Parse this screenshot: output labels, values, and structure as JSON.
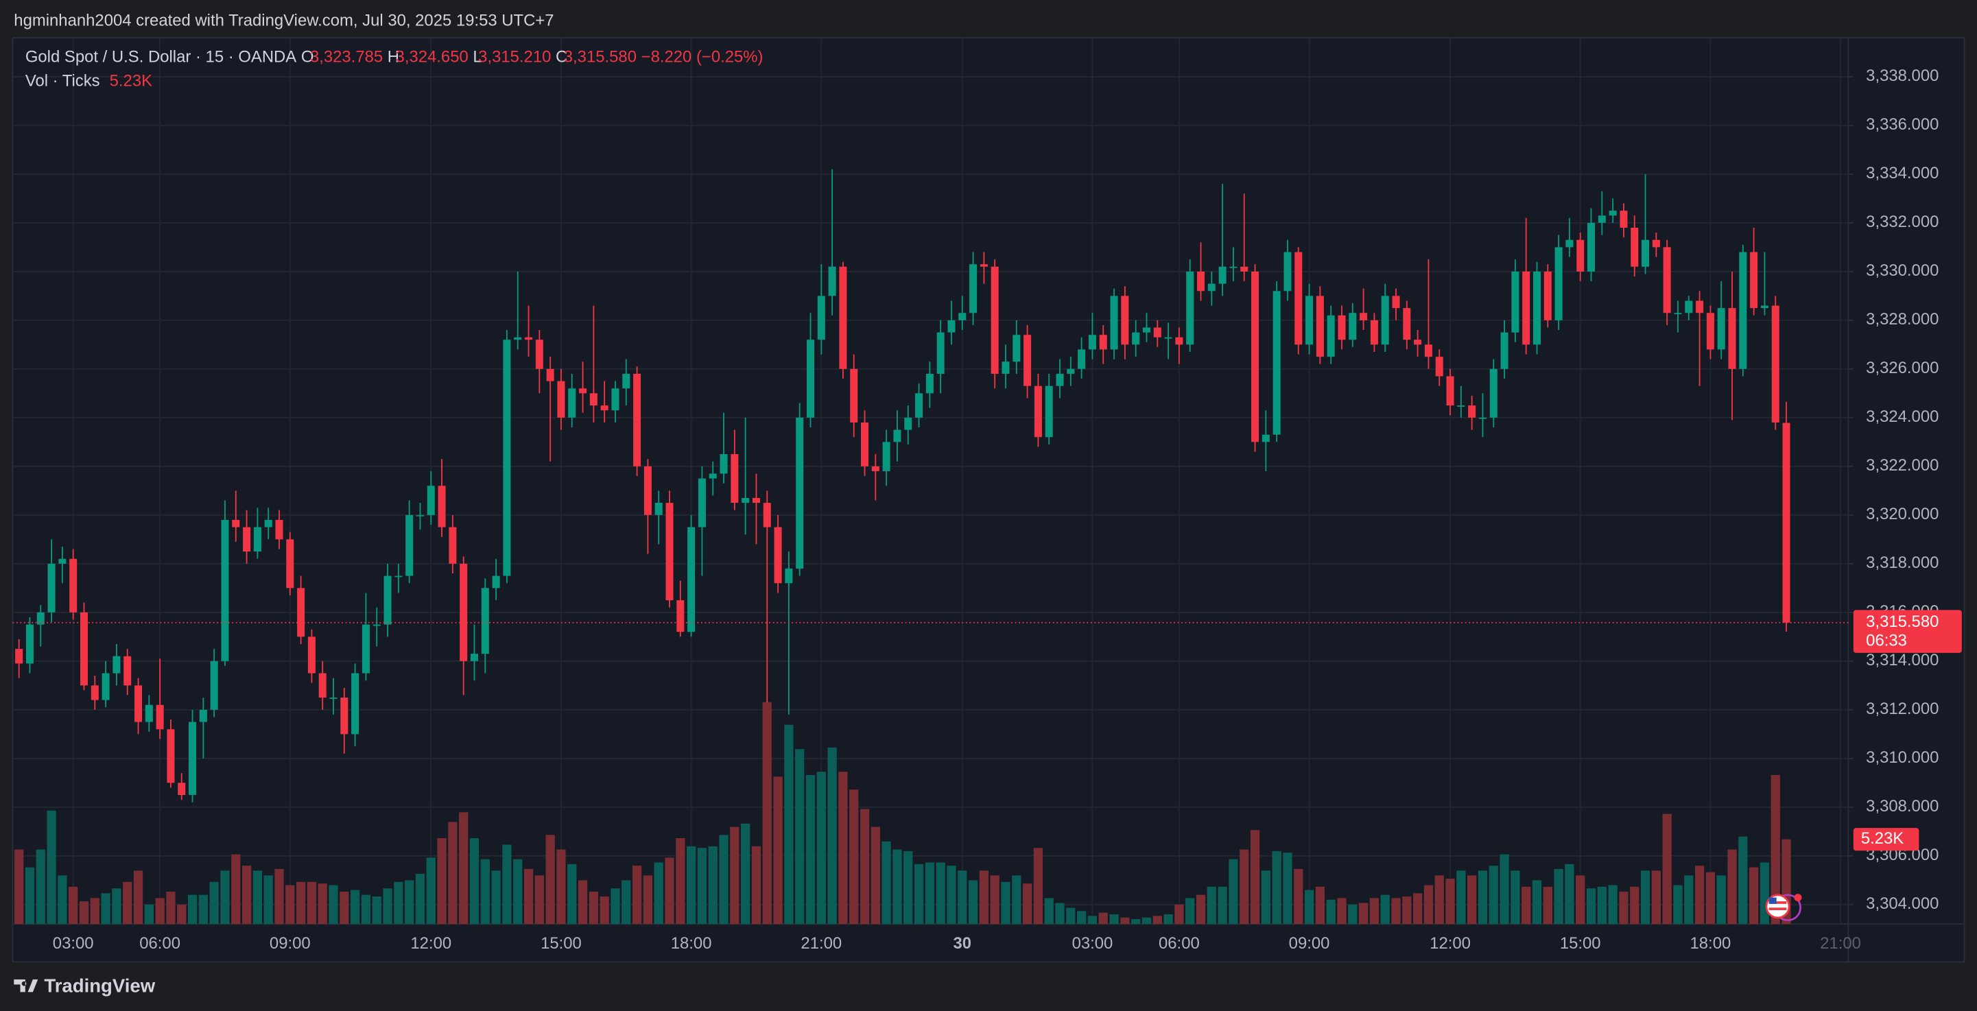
{
  "header": {
    "text": "hgminhanh2004 created with TradingView.com, Jul 30, 2025 19:53 UTC+7"
  },
  "footer": {
    "brand": "TradingView"
  },
  "chart_data": {
    "type": "candlestick",
    "title": "Gold Spot / U.S. Dollar · 15 · OANDA",
    "ohlc_keys": [
      "O",
      "H",
      "L",
      "C"
    ],
    "ohlc_labels": [
      "3,323.785",
      "3,324.650",
      "3,315.210",
      "3,315.580"
    ],
    "change_label": "−8.220 (−0.25%)",
    "countdown": "06:33",
    "up_color": "#089981",
    "down_color": "#f23645",
    "volume_up_color": "#0b5e57",
    "volume_down_color": "#7a2d33",
    "grid": true,
    "ylim": [
      3303.2,
      3339.6
    ],
    "yticks": [
      {
        "value": 3304,
        "label": "3,304.000"
      },
      {
        "value": 3306,
        "label": "3,306.000"
      },
      {
        "value": 3308,
        "label": "3,308.000"
      },
      {
        "value": 3310,
        "label": "3,310.000"
      },
      {
        "value": 3312,
        "label": "3,312.000"
      },
      {
        "value": 3314,
        "label": "3,314.000"
      },
      {
        "value": 3316,
        "label": "3,316.000"
      },
      {
        "value": 3318,
        "label": "3,318.000"
      },
      {
        "value": 3320,
        "label": "3,320.000"
      },
      {
        "value": 3322,
        "label": "3,322.000"
      },
      {
        "value": 3324,
        "label": "3,324.000"
      },
      {
        "value": 3326,
        "label": "3,326.000"
      },
      {
        "value": 3328,
        "label": "3,328.000"
      },
      {
        "value": 3330,
        "label": "3,330.000"
      },
      {
        "value": 3332,
        "label": "3,332.000"
      },
      {
        "value": 3334,
        "label": "3,334.000"
      },
      {
        "value": 3336,
        "label": "3,336.000"
      },
      {
        "value": 3338,
        "label": "3,338.000"
      }
    ],
    "xticks": [
      {
        "value": 5,
        "label": "03:00"
      },
      {
        "value": 13,
        "label": "06:00"
      },
      {
        "value": 25,
        "label": "09:00"
      },
      {
        "value": 38,
        "label": "12:00"
      },
      {
        "value": 50,
        "label": "15:00"
      },
      {
        "value": 62,
        "label": "18:00"
      },
      {
        "value": 74,
        "label": "21:00"
      },
      {
        "value": 87,
        "label": "30"
      },
      {
        "value": 99,
        "label": "03:00"
      },
      {
        "value": 107,
        "label": "06:00"
      },
      {
        "value": 119,
        "label": "09:00"
      },
      {
        "value": 132,
        "label": "12:00"
      },
      {
        "value": 144,
        "label": "15:00"
      },
      {
        "value": 156,
        "label": "18:00"
      },
      {
        "value": 168,
        "label": "21:00"
      }
    ],
    "candles": [
      [
        3314.5,
        3314.9,
        3313.3,
        3313.9
      ],
      [
        3313.9,
        3315.8,
        3313.5,
        3315.5
      ],
      [
        3315.5,
        3316.3,
        3314.6,
        3316.0
      ],
      [
        3316.0,
        3319.0,
        3315.6,
        3318.0
      ],
      [
        3318.0,
        3318.7,
        3317.2,
        3318.2
      ],
      [
        3318.2,
        3318.6,
        3315.7,
        3316.0
      ],
      [
        3316.0,
        3316.4,
        3312.8,
        3313.0
      ],
      [
        3313.0,
        3313.4,
        3312.0,
        3312.4
      ],
      [
        3312.4,
        3314.0,
        3312.1,
        3313.5
      ],
      [
        3313.5,
        3314.7,
        3313.0,
        3314.2
      ],
      [
        3314.2,
        3314.5,
        3312.6,
        3313.0
      ],
      [
        3313.0,
        3313.3,
        3311.0,
        3311.5
      ],
      [
        3311.5,
        3312.6,
        3311.1,
        3312.2
      ],
      [
        3312.2,
        3314.1,
        3310.8,
        3311.2
      ],
      [
        3311.2,
        3311.6,
        3308.8,
        3309.0
      ],
      [
        3309.0,
        3309.4,
        3308.3,
        3308.5
      ],
      [
        3308.5,
        3312.0,
        3308.2,
        3311.5
      ],
      [
        3311.5,
        3312.5,
        3310.0,
        3312.0
      ],
      [
        3312.0,
        3314.5,
        3311.7,
        3314.0
      ],
      [
        3314.0,
        3320.6,
        3313.8,
        3319.8
      ],
      [
        3319.8,
        3321.0,
        3318.9,
        3319.5
      ],
      [
        3319.5,
        3320.2,
        3318.0,
        3318.5
      ],
      [
        3318.5,
        3320.3,
        3318.2,
        3319.5
      ],
      [
        3319.5,
        3320.3,
        3319.0,
        3319.8
      ],
      [
        3319.8,
        3320.2,
        3318.6,
        3319.0
      ],
      [
        3319.0,
        3319.3,
        3316.7,
        3317.0
      ],
      [
        3317.0,
        3317.5,
        3314.7,
        3315.0
      ],
      [
        3315.0,
        3315.3,
        3313.1,
        3313.5
      ],
      [
        3313.5,
        3314.0,
        3312.0,
        3312.5
      ],
      [
        3312.5,
        3313.3,
        3311.8,
        3312.5
      ],
      [
        3312.5,
        3312.9,
        3310.2,
        3311.0
      ],
      [
        3311.0,
        3313.9,
        3310.5,
        3313.5
      ],
      [
        3313.5,
        3316.8,
        3313.2,
        3315.5
      ],
      [
        3315.5,
        3316.2,
        3314.6,
        3315.5
      ],
      [
        3315.5,
        3318.0,
        3315.0,
        3317.5
      ],
      [
        3317.5,
        3318.0,
        3316.8,
        3317.5
      ],
      [
        3317.5,
        3320.6,
        3317.2,
        3320.0
      ],
      [
        3320.0,
        3320.5,
        3319.4,
        3320.0
      ],
      [
        3320.0,
        3321.8,
        3319.6,
        3321.2
      ],
      [
        3321.2,
        3322.3,
        3319.1,
        3319.5
      ],
      [
        3319.5,
        3320.0,
        3317.6,
        3318.0
      ],
      [
        3318.0,
        3318.3,
        3312.6,
        3314.0
      ],
      [
        3314.0,
        3315.5,
        3313.2,
        3314.3
      ],
      [
        3314.3,
        3317.4,
        3313.5,
        3317.0
      ],
      [
        3317.0,
        3318.2,
        3316.5,
        3317.5
      ],
      [
        3317.5,
        3327.6,
        3317.2,
        3327.2
      ],
      [
        3327.2,
        3330.0,
        3326.8,
        3327.3
      ],
      [
        3327.3,
        3328.6,
        3326.5,
        3327.2
      ],
      [
        3327.2,
        3327.6,
        3325.0,
        3326.0
      ],
      [
        3326.0,
        3326.5,
        3322.2,
        3325.5
      ],
      [
        3325.5,
        3326.0,
        3323.5,
        3324.0
      ],
      [
        3324.0,
        3325.8,
        3323.6,
        3325.2
      ],
      [
        3325.2,
        3326.3,
        3324.2,
        3325.0
      ],
      [
        3325.0,
        3328.6,
        3323.8,
        3324.5
      ],
      [
        3324.5,
        3325.5,
        3323.8,
        3324.3
      ],
      [
        3324.3,
        3325.5,
        3323.8,
        3325.2
      ],
      [
        3325.2,
        3326.4,
        3324.5,
        3325.8
      ],
      [
        3325.8,
        3326.1,
        3321.6,
        3322.0
      ],
      [
        3322.0,
        3322.3,
        3318.4,
        3320.0
      ],
      [
        3320.0,
        3321.0,
        3318.8,
        3320.5
      ],
      [
        3320.5,
        3321.0,
        3316.2,
        3316.5
      ],
      [
        3316.5,
        3317.3,
        3315.0,
        3315.2
      ],
      [
        3315.2,
        3320.0,
        3315.0,
        3319.5
      ],
      [
        3319.5,
        3322.0,
        3317.5,
        3321.5
      ],
      [
        3321.5,
        3322.2,
        3320.8,
        3321.7
      ],
      [
        3321.7,
        3324.2,
        3321.3,
        3322.5
      ],
      [
        3322.5,
        3323.5,
        3320.2,
        3320.5
      ],
      [
        3320.5,
        3324.0,
        3319.2,
        3320.7
      ],
      [
        3320.7,
        3321.7,
        3318.8,
        3320.5
      ],
      [
        3320.5,
        3321.0,
        3312.3,
        3319.5
      ],
      [
        3319.5,
        3320.0,
        3316.8,
        3317.2
      ],
      [
        3317.2,
        3318.5,
        3311.8,
        3317.8
      ],
      [
        3317.8,
        3324.6,
        3317.5,
        3324.0
      ],
      [
        3324.0,
        3328.3,
        3323.6,
        3327.2
      ],
      [
        3327.2,
        3330.3,
        3326.6,
        3329.0
      ],
      [
        3329.0,
        3334.2,
        3328.2,
        3330.2
      ],
      [
        3330.2,
        3330.4,
        3325.6,
        3326.0
      ],
      [
        3326.0,
        3326.6,
        3323.2,
        3323.8
      ],
      [
        3323.8,
        3324.3,
        3321.6,
        3322.0
      ],
      [
        3322.0,
        3322.5,
        3320.6,
        3321.8
      ],
      [
        3321.8,
        3323.5,
        3321.2,
        3323.0
      ],
      [
        3323.0,
        3324.3,
        3322.2,
        3323.5
      ],
      [
        3323.5,
        3324.5,
        3322.9,
        3324.0
      ],
      [
        3324.0,
        3325.4,
        3323.6,
        3325.0
      ],
      [
        3325.0,
        3326.3,
        3324.4,
        3325.8
      ],
      [
        3325.8,
        3328.0,
        3325.0,
        3327.5
      ],
      [
        3327.5,
        3328.8,
        3327.0,
        3328.0
      ],
      [
        3328.0,
        3329.0,
        3327.6,
        3328.3
      ],
      [
        3328.3,
        3330.8,
        3327.8,
        3330.3
      ],
      [
        3330.3,
        3330.8,
        3329.5,
        3330.2
      ],
      [
        3330.2,
        3330.5,
        3325.2,
        3325.8
      ],
      [
        3325.8,
        3327.0,
        3325.2,
        3326.3
      ],
      [
        3326.3,
        3328.0,
        3325.8,
        3327.4
      ],
      [
        3327.4,
        3327.8,
        3324.8,
        3325.3
      ],
      [
        3325.3,
        3325.8,
        3322.8,
        3323.2
      ],
      [
        3323.2,
        3325.8,
        3322.9,
        3325.3
      ],
      [
        3325.3,
        3326.4,
        3324.8,
        3325.8
      ],
      [
        3325.8,
        3326.5,
        3325.3,
        3326.0
      ],
      [
        3326.0,
        3327.3,
        3325.6,
        3326.8
      ],
      [
        3326.8,
        3328.3,
        3326.4,
        3327.4
      ],
      [
        3327.4,
        3327.8,
        3326.2,
        3326.8
      ],
      [
        3326.8,
        3329.3,
        3326.4,
        3329.0
      ],
      [
        3329.0,
        3329.4,
        3326.4,
        3327.0
      ],
      [
        3327.0,
        3328.0,
        3326.5,
        3327.5
      ],
      [
        3327.5,
        3328.3,
        3327.1,
        3327.7
      ],
      [
        3327.7,
        3328.0,
        3326.9,
        3327.3
      ],
      [
        3327.3,
        3327.9,
        3326.4,
        3327.3
      ],
      [
        3327.3,
        3327.7,
        3326.2,
        3327.0
      ],
      [
        3327.0,
        3330.5,
        3326.7,
        3330.0
      ],
      [
        3330.0,
        3331.2,
        3328.8,
        3329.2
      ],
      [
        3329.2,
        3330.0,
        3328.6,
        3329.5
      ],
      [
        3329.5,
        3333.6,
        3329.0,
        3330.2
      ],
      [
        3330.2,
        3331.0,
        3329.6,
        3330.2
      ],
      [
        3330.2,
        3333.2,
        3329.6,
        3330.0
      ],
      [
        3330.0,
        3330.3,
        3322.6,
        3323.0
      ],
      [
        3323.0,
        3324.3,
        3321.8,
        3323.3
      ],
      [
        3323.3,
        3329.6,
        3323.0,
        3329.2
      ],
      [
        3329.2,
        3331.3,
        3328.8,
        3330.8
      ],
      [
        3330.8,
        3331.0,
        3326.6,
        3327.0
      ],
      [
        3327.0,
        3329.5,
        3326.6,
        3329.0
      ],
      [
        3329.0,
        3329.4,
        3326.2,
        3326.5
      ],
      [
        3326.5,
        3328.6,
        3326.2,
        3328.2
      ],
      [
        3328.2,
        3328.6,
        3326.8,
        3327.2
      ],
      [
        3327.2,
        3328.7,
        3326.9,
        3328.3
      ],
      [
        3328.3,
        3329.3,
        3327.6,
        3328.0
      ],
      [
        3328.0,
        3328.3,
        3326.7,
        3327.0
      ],
      [
        3327.0,
        3329.5,
        3326.7,
        3329.0
      ],
      [
        3329.0,
        3329.3,
        3328.0,
        3328.5
      ],
      [
        3328.5,
        3328.8,
        3326.8,
        3327.2
      ],
      [
        3327.2,
        3327.6,
        3326.5,
        3327.0
      ],
      [
        3327.0,
        3330.5,
        3326.0,
        3326.5
      ],
      [
        3326.5,
        3326.8,
        3325.3,
        3325.7
      ],
      [
        3325.7,
        3326.0,
        3324.1,
        3324.5
      ],
      [
        3324.5,
        3325.3,
        3324.0,
        3324.5
      ],
      [
        3324.5,
        3324.9,
        3323.5,
        3324.0
      ],
      [
        3324.0,
        3325.0,
        3323.2,
        3324.0
      ],
      [
        3324.0,
        3326.4,
        3323.6,
        3326.0
      ],
      [
        3326.0,
        3328.0,
        3325.6,
        3327.5
      ],
      [
        3327.5,
        3330.5,
        3327.1,
        3330.0
      ],
      [
        3330.0,
        3332.2,
        3326.6,
        3327.0
      ],
      [
        3327.0,
        3330.4,
        3326.6,
        3330.0
      ],
      [
        3330.0,
        3330.3,
        3327.7,
        3328.0
      ],
      [
        3328.0,
        3331.5,
        3327.6,
        3331.0
      ],
      [
        3331.0,
        3332.2,
        3330.6,
        3331.3
      ],
      [
        3331.3,
        3331.6,
        3329.6,
        3330.0
      ],
      [
        3330.0,
        3332.6,
        3329.6,
        3332.0
      ],
      [
        3332.0,
        3333.3,
        3331.5,
        3332.3
      ],
      [
        3332.3,
        3333.0,
        3332.0,
        3332.5
      ],
      [
        3332.5,
        3332.8,
        3331.4,
        3331.8
      ],
      [
        3331.8,
        3332.3,
        3329.8,
        3330.2
      ],
      [
        3330.2,
        3334.0,
        3329.9,
        3331.3
      ],
      [
        3331.3,
        3331.6,
        3330.6,
        3331.0
      ],
      [
        3331.0,
        3331.3,
        3327.8,
        3328.3
      ],
      [
        3328.3,
        3328.8,
        3327.5,
        3328.3
      ],
      [
        3328.3,
        3329.0,
        3328.0,
        3328.8
      ],
      [
        3328.8,
        3329.2,
        3325.3,
        3328.3
      ],
      [
        3328.3,
        3328.6,
        3326.4,
        3326.8
      ],
      [
        3326.8,
        3329.6,
        3326.4,
        3328.5
      ],
      [
        3328.5,
        3330.0,
        3323.9,
        3326.0
      ],
      [
        3326.0,
        3331.1,
        3325.7,
        3330.8
      ],
      [
        3330.8,
        3331.8,
        3328.2,
        3328.5
      ],
      [
        3328.5,
        3330.8,
        3328.2,
        3328.6
      ],
      [
        3328.6,
        3329.0,
        3323.5,
        3323.8
      ],
      [
        3323.785,
        3324.65,
        3315.21,
        3315.58
      ]
    ],
    "volume": {
      "name": "Vol · Ticks",
      "value_label": "5.23K",
      "values": [
        4.6,
        3.5,
        4.6,
        7.0,
        3.0,
        2.3,
        1.4,
        1.6,
        1.9,
        2.2,
        2.6,
        3.3,
        1.2,
        1.6,
        2.0,
        1.2,
        1.8,
        1.8,
        2.6,
        3.3,
        4.3,
        3.6,
        3.3,
        3.0,
        3.4,
        2.4,
        2.6,
        2.6,
        2.5,
        2.4,
        2.0,
        2.1,
        1.8,
        1.7,
        2.2,
        2.6,
        2.7,
        3.1,
        4.1,
        5.3,
        6.3,
        6.9,
        5.3,
        4.0,
        3.3,
        4.9,
        4.0,
        3.4,
        3.0,
        5.5,
        4.6,
        3.7,
        2.7,
        2.0,
        1.7,
        2.2,
        2.7,
        3.6,
        3.0,
        3.8,
        4.1,
        5.3,
        4.8,
        4.7,
        4.8,
        5.5,
        6.0,
        6.2,
        4.8,
        13.7,
        9.1,
        12.3,
        10.8,
        9.2,
        9.4,
        10.9,
        9.4,
        8.3,
        7.1,
        6.0,
        5.1,
        4.6,
        4.5,
        3.7,
        3.8,
        3.8,
        3.6,
        3.3,
        2.7,
        3.3,
        3.0,
        2.6,
        3.0,
        2.5,
        4.7,
        1.6,
        1.3,
        1.0,
        0.8,
        0.5,
        0.7,
        0.6,
        0.4,
        0.3,
        0.4,
        0.5,
        0.6,
        1.2,
        1.6,
        1.8,
        2.3,
        2.3,
        4.0,
        4.6,
        5.8,
        3.3,
        4.5,
        4.4,
        3.4,
        2.1,
        2.3,
        1.5,
        1.6,
        1.2,
        1.3,
        1.6,
        1.8,
        1.6,
        1.7,
        1.9,
        2.4,
        3.0,
        2.8,
        3.3,
        3.0,
        3.3,
        3.6,
        4.3,
        3.3,
        2.3,
        2.7,
        2.3,
        3.4,
        3.7,
        3.0,
        2.2,
        2.3,
        2.4,
        2.0,
        2.3,
        3.3,
        3.3,
        6.8,
        2.4,
        3.0,
        3.6,
        3.2,
        3.0,
        4.6,
        5.4,
        3.5,
        3.8,
        9.2,
        5.23
      ]
    }
  }
}
